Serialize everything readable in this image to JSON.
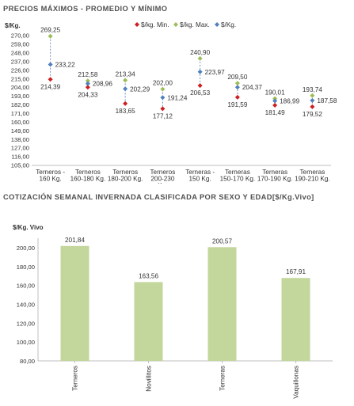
{
  "chart1_title": "PRECIOS MÁXIMOS - PROMEDIO Y MÍNIMO",
  "chart2_title": "COTIZACIÓN SEMANAL INVERNADA CLASIFICADA POR SEXO Y EDAD[$/Kg.Vivo]",
  "chart_data": [
    {
      "type": "scatter",
      "title": "PRECIOS MÁXIMOS - PROMEDIO Y MÍNIMO",
      "ylabel": "$/Kg.",
      "ylim": [
        105,
        270
      ],
      "yticks": [
        "270,00",
        "259,00",
        "248,00",
        "237,00",
        "226,00",
        "215,00",
        "204,00",
        "193,00",
        "182,00",
        "171,00",
        "160,00",
        "149,00",
        "138,00",
        "127,00",
        "116,00",
        "105,00"
      ],
      "categories": [
        [
          "Terneros -",
          "160 Kg."
        ],
        [
          "Terneros",
          "160-180 Kg."
        ],
        [
          "Terneros",
          "180-200 Kg."
        ],
        [
          "Terneros",
          "200-230",
          "Kg."
        ],
        [
          "Terneras -",
          "150 Kg."
        ],
        [
          "Terneras",
          "150-170 Kg."
        ],
        [
          "Terneras",
          "170-190 Kg."
        ],
        [
          "Terneras",
          "190-210 Kg."
        ]
      ],
      "series": [
        {
          "name": "$/kg. Min.",
          "color": "#cc1f1f",
          "values": [
            214.39,
            204.33,
            183.65,
            177.12,
            206.53,
            191.59,
            181.49,
            179.52
          ]
        },
        {
          "name": "$/kg. Max.",
          "color": "#9cbd58",
          "values": [
            269.25,
            212.58,
            213.34,
            202.0,
            240.9,
            209.5,
            190.01,
            193.74
          ]
        },
        {
          "name": "$/Kg.",
          "color": "#4f81bd",
          "values": [
            233.22,
            208.96,
            202.29,
            191.24,
            223.97,
            204.37,
            186.99,
            187.58
          ]
        }
      ],
      "min_labels": [
        "214,39",
        "204,33",
        "183,65",
        "177,12",
        "206,53",
        "191,59",
        "181,49",
        "179,52"
      ],
      "max_labels": [
        "269,25",
        "212,58",
        "213,34",
        "202,00",
        "240,90",
        "209,50",
        "190,01",
        "193,74"
      ],
      "avg_labels": [
        "233,22",
        "208,96",
        "202,29",
        "191,24",
        "223,97",
        "204,37",
        "186,99",
        "187,58"
      ],
      "legend_position": "top-right"
    },
    {
      "type": "bar",
      "title": "COTIZACIÓN SEMANAL INVERNADA CLASIFICADA POR SEXO Y EDAD[$/Kg.Vivo]",
      "ylabel": "$/Kg. Vivo",
      "ylim": [
        80,
        200
      ],
      "yticks": [
        "200,00",
        "180,00",
        "160,00",
        "140,00",
        "120,00",
        "100,00",
        "80,00"
      ],
      "categories": [
        "Terneros",
        "Novillitos",
        "Terneras",
        "Vaquillonas"
      ],
      "values": [
        201.84,
        163.56,
        200.57,
        167.91
      ],
      "value_labels": [
        "201,84",
        "163,56",
        "200,57",
        "167,91"
      ],
      "bar_color": "#c3d69b"
    }
  ]
}
